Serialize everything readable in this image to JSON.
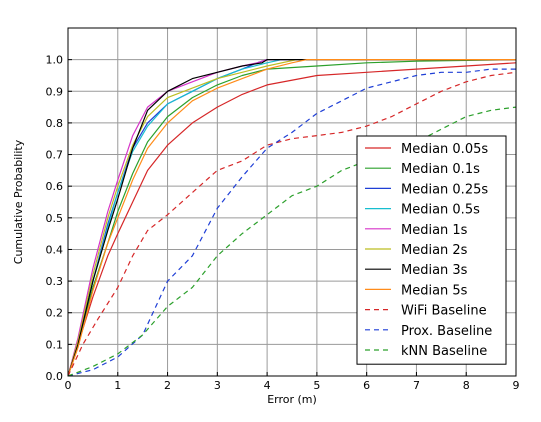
{
  "chart_data": {
    "type": "line",
    "title": "",
    "xlabel": "Error (m)",
    "ylabel": "Cumulative Probability",
    "xlim": [
      0,
      9
    ],
    "ylim": [
      0,
      1.1
    ],
    "x_ticks": [
      "0",
      "1",
      "2",
      "3",
      "4",
      "5",
      "6",
      "7",
      "8",
      "9"
    ],
    "y_ticks": [
      "0.0",
      "0.1",
      "0.2",
      "0.3",
      "0.4",
      "0.5",
      "0.6",
      "0.7",
      "0.8",
      "0.9",
      "1.0"
    ],
    "grid": true,
    "legend_position": "right",
    "series": [
      {
        "name": "Median 0.05s",
        "color": "#d62728",
        "dash": "solid",
        "x": [
          0,
          0.2,
          0.5,
          0.8,
          1.0,
          1.3,
          1.6,
          2.0,
          2.5,
          3.0,
          3.5,
          4.0,
          5.0,
          6.0,
          7.0,
          8.0,
          9.0
        ],
        "y": [
          0,
          0.1,
          0.25,
          0.38,
          0.45,
          0.55,
          0.65,
          0.73,
          0.8,
          0.85,
          0.89,
          0.92,
          0.95,
          0.96,
          0.97,
          0.98,
          0.99
        ]
      },
      {
        "name": "Median 0.1s",
        "color": "#2ca02c",
        "dash": "solid",
        "x": [
          0,
          0.2,
          0.5,
          0.8,
          1.0,
          1.3,
          1.6,
          2.0,
          2.5,
          3.0,
          3.5,
          4.0,
          5.0,
          6.0,
          7.0,
          9.0
        ],
        "y": [
          0,
          0.1,
          0.28,
          0.42,
          0.52,
          0.64,
          0.74,
          0.82,
          0.88,
          0.92,
          0.95,
          0.97,
          0.98,
          0.99,
          0.995,
          1.0
        ]
      },
      {
        "name": "Median 0.25s",
        "color": "#1f3fd6",
        "dash": "solid",
        "x": [
          0,
          0.2,
          0.5,
          0.8,
          1.0,
          1.3,
          1.6,
          2.0,
          2.5,
          3.0,
          3.5,
          3.8,
          4.0,
          4.5,
          9.0
        ],
        "y": [
          0,
          0.1,
          0.3,
          0.48,
          0.58,
          0.72,
          0.8,
          0.86,
          0.9,
          0.94,
          0.97,
          0.99,
          1.0,
          1.0,
          1.0
        ]
      },
      {
        "name": "Median 0.5s",
        "color": "#17becf",
        "dash": "solid",
        "x": [
          0,
          0.2,
          0.5,
          0.8,
          1.0,
          1.3,
          1.6,
          2.0,
          2.5,
          3.0,
          3.5,
          4.0,
          4.3,
          9.0
        ],
        "y": [
          0,
          0.1,
          0.3,
          0.47,
          0.58,
          0.71,
          0.79,
          0.86,
          0.9,
          0.94,
          0.97,
          0.99,
          1.0,
          1.0
        ]
      },
      {
        "name": "Median 1s",
        "color": "#d633c8",
        "dash": "solid",
        "x": [
          0,
          0.2,
          0.5,
          0.8,
          1.0,
          1.3,
          1.6,
          2.0,
          2.5,
          3.0,
          3.5,
          3.8,
          4.0,
          9.0
        ],
        "y": [
          0,
          0.12,
          0.34,
          0.52,
          0.62,
          0.76,
          0.85,
          0.9,
          0.93,
          0.96,
          0.98,
          0.99,
          1.0,
          1.0
        ]
      },
      {
        "name": "Median 2s",
        "color": "#bcbd22",
        "dash": "solid",
        "x": [
          0,
          0.2,
          0.5,
          0.8,
          1.0,
          1.3,
          1.6,
          2.0,
          2.5,
          3.0,
          3.5,
          4.0,
          4.6,
          9.0
        ],
        "y": [
          0,
          0.11,
          0.32,
          0.5,
          0.6,
          0.73,
          0.82,
          0.88,
          0.91,
          0.94,
          0.96,
          0.98,
          1.0,
          1.0
        ]
      },
      {
        "name": "Median 3s",
        "color": "#000000",
        "dash": "solid",
        "x": [
          0,
          0.2,
          0.5,
          0.8,
          1.0,
          1.3,
          1.6,
          2.0,
          2.5,
          3.0,
          3.5,
          3.9,
          4.0,
          9.0
        ],
        "y": [
          0,
          0.1,
          0.3,
          0.46,
          0.56,
          0.72,
          0.84,
          0.9,
          0.94,
          0.96,
          0.98,
          0.99,
          1.0,
          1.0
        ]
      },
      {
        "name": "Median 5s",
        "color": "#ff8c1a",
        "dash": "solid",
        "x": [
          0,
          0.2,
          0.5,
          0.8,
          1.0,
          1.3,
          1.6,
          2.0,
          2.5,
          3.0,
          3.5,
          4.0,
          4.5,
          4.8,
          9.0
        ],
        "y": [
          0,
          0.09,
          0.27,
          0.42,
          0.5,
          0.62,
          0.72,
          0.8,
          0.87,
          0.91,
          0.94,
          0.97,
          0.99,
          1.0,
          1.0
        ]
      },
      {
        "name": "WiFi Baseline",
        "color": "#d62728",
        "dash": "dashed",
        "x": [
          0,
          0.3,
          0.6,
          1.0,
          1.3,
          1.6,
          2.0,
          2.5,
          3.0,
          3.5,
          4.0,
          4.5,
          5.0,
          5.5,
          6.0,
          6.5,
          7.0,
          7.5,
          8.0,
          8.5,
          9.0
        ],
        "y": [
          0,
          0.1,
          0.18,
          0.28,
          0.38,
          0.46,
          0.51,
          0.58,
          0.65,
          0.68,
          0.73,
          0.75,
          0.76,
          0.77,
          0.79,
          0.82,
          0.86,
          0.9,
          0.93,
          0.95,
          0.96
        ]
      },
      {
        "name": "Prox. Baseline",
        "color": "#1f3fd6",
        "dash": "dashed",
        "x": [
          0,
          0.5,
          1.0,
          1.5,
          2.0,
          2.5,
          3.0,
          3.5,
          4.0,
          4.5,
          5.0,
          5.5,
          6.0,
          6.5,
          7.0,
          7.5,
          8.0,
          8.5,
          9.0
        ],
        "y": [
          0,
          0.02,
          0.06,
          0.13,
          0.3,
          0.38,
          0.53,
          0.63,
          0.72,
          0.77,
          0.83,
          0.87,
          0.91,
          0.93,
          0.95,
          0.96,
          0.96,
          0.97,
          0.97
        ]
      },
      {
        "name": "kNN Baseline",
        "color": "#2ca02c",
        "dash": "dashed",
        "x": [
          0,
          0.5,
          1.0,
          1.5,
          2.0,
          2.5,
          3.0,
          3.5,
          4.0,
          4.5,
          5.0,
          5.5,
          6.0,
          6.5,
          7.0,
          7.5,
          8.0,
          8.5,
          9.0
        ],
        "y": [
          0,
          0.03,
          0.07,
          0.13,
          0.22,
          0.28,
          0.38,
          0.45,
          0.51,
          0.57,
          0.6,
          0.65,
          0.68,
          0.7,
          0.74,
          0.78,
          0.82,
          0.84,
          0.85
        ]
      }
    ]
  }
}
